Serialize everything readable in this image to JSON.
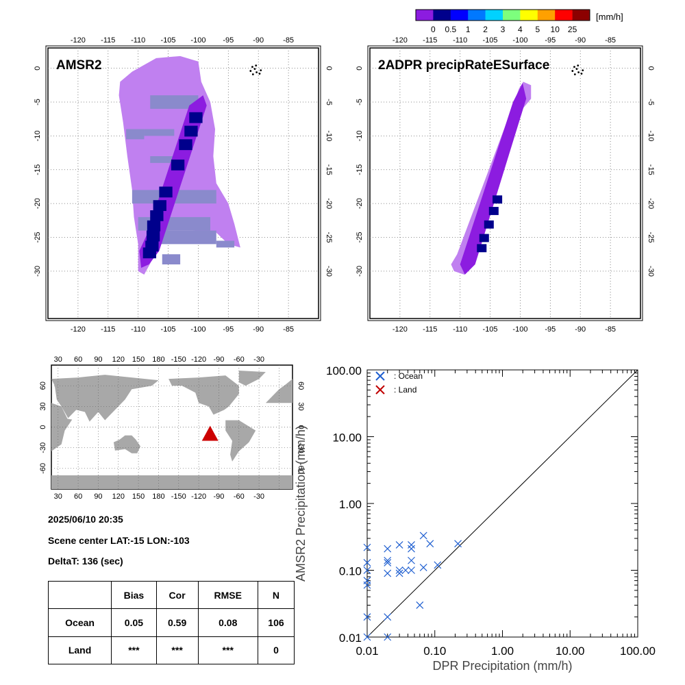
{
  "colorbar": {
    "colors": [
      "#8c1ce0",
      "#00008c",
      "#0000ff",
      "#0078ff",
      "#00d2ff",
      "#7dff7d",
      "#ffff00",
      "#ffa000",
      "#ff0000",
      "#8c0000"
    ],
    "tick_labels": [
      "0",
      "0.5",
      "1",
      "2",
      "3",
      "4",
      "5",
      "10",
      "25"
    ],
    "unit": "[mm/h]"
  },
  "maps": {
    "amsr2_title": "AMSR2",
    "dpr_title": "2ADPR precipRateESurface",
    "lon_ticks": [
      "-120",
      "-115",
      "-110",
      "-105",
      "-100",
      "-95",
      "-90",
      "-85"
    ],
    "lat_ticks": [
      "0",
      "-5",
      "-10",
      "-15",
      "-20",
      "-25",
      "-30"
    ],
    "light_color": "#c080f0",
    "mid_color": "#8c1ce0",
    "dark_color": "#00008c",
    "gray_color": "#8a8acc"
  },
  "world": {
    "lon_ticks": [
      "30",
      "60",
      "90",
      "120",
      "150",
      "180",
      "-150",
      "-120",
      "-90",
      "-60",
      "-30"
    ],
    "lat_ticks": [
      "60",
      "30",
      "0",
      "-30",
      "-60"
    ],
    "marker_color": "#cc0000"
  },
  "info": {
    "datetime": "2025/06/10 20:35",
    "scene_center": "Scene center LAT:-15   LON:-103",
    "delta_t": "DeltaT:  136 (sec)"
  },
  "stats_table": {
    "headers": [
      "",
      "Bias",
      "Cor",
      "RMSE",
      "N"
    ],
    "rows": [
      [
        "Ocean",
        "0.05",
        "0.59",
        "0.08",
        "106"
      ],
      [
        "Land",
        "***",
        "***",
        "***",
        "0"
      ]
    ]
  },
  "chart_data": {
    "type": "scatter",
    "xlabel": "DPR Precipitation (mm/h)",
    "ylabel": "AMSR2 Precipitation (mm/h)",
    "xscale": "log",
    "yscale": "log",
    "xlim": [
      0.01,
      100
    ],
    "ylim": [
      0.01,
      100
    ],
    "tick_labels": [
      "0.01",
      "0.10",
      "1.00",
      "10.00",
      "100.00"
    ],
    "legend_placement": "top-left",
    "series": [
      {
        "name": ": Ocean",
        "color": "#1f5fd0",
        "points": [
          [
            0.01,
            0.22
          ],
          [
            0.01,
            0.13
          ],
          [
            0.01,
            0.1
          ],
          [
            0.01,
            0.07
          ],
          [
            0.01,
            0.06
          ],
          [
            0.01,
            0.02
          ],
          [
            0.01,
            0.01
          ],
          [
            0.02,
            0.21
          ],
          [
            0.02,
            0.14
          ],
          [
            0.02,
            0.13
          ],
          [
            0.02,
            0.09
          ],
          [
            0.02,
            0.02
          ],
          [
            0.02,
            0.01
          ],
          [
            0.03,
            0.24
          ],
          [
            0.03,
            0.1
          ],
          [
            0.03,
            0.09
          ],
          [
            0.037,
            0.1
          ],
          [
            0.045,
            0.24
          ],
          [
            0.045,
            0.21
          ],
          [
            0.045,
            0.14
          ],
          [
            0.045,
            0.1
          ],
          [
            0.06,
            0.03
          ],
          [
            0.068,
            0.33
          ],
          [
            0.068,
            0.11
          ],
          [
            0.085,
            0.25
          ],
          [
            0.11,
            0.12
          ],
          [
            0.22,
            0.25
          ]
        ]
      },
      {
        "name": ": Land",
        "color": "#c00000",
        "points": []
      }
    ]
  }
}
